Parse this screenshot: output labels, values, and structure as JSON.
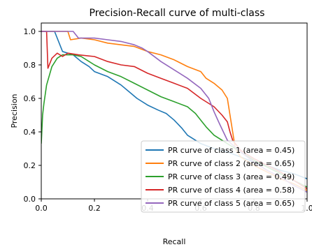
{
  "chart_data": {
    "type": "line",
    "title": "Precision-Recall curve of multi-class",
    "xlabel": "Recall",
    "ylabel": "Precision",
    "xlim": [
      0.0,
      1.0
    ],
    "ylim": [
      0.0,
      1.05
    ],
    "xticks": [
      "0.0",
      "0.2",
      "0.4",
      "0.6",
      "0.8",
      "1.0"
    ],
    "yticks": [
      "0.0",
      "0.2",
      "0.4",
      "0.6",
      "0.8",
      "1.0"
    ],
    "grid": false,
    "legend_position": "lower-right",
    "series": [
      {
        "name": "PR curve of class 1 (area = 0.45)",
        "color": "#1f77b4",
        "points": [
          [
            0.0,
            1.0
          ],
          [
            0.05,
            1.0
          ],
          [
            0.08,
            0.88
          ],
          [
            0.12,
            0.86
          ],
          [
            0.15,
            0.82
          ],
          [
            0.18,
            0.79
          ],
          [
            0.2,
            0.76
          ],
          [
            0.25,
            0.73
          ],
          [
            0.3,
            0.68
          ],
          [
            0.33,
            0.64
          ],
          [
            0.36,
            0.6
          ],
          [
            0.4,
            0.56
          ],
          [
            0.44,
            0.53
          ],
          [
            0.47,
            0.51
          ],
          [
            0.5,
            0.47
          ],
          [
            0.53,
            0.42
          ],
          [
            0.55,
            0.38
          ],
          [
            0.57,
            0.36
          ],
          [
            0.6,
            0.33
          ],
          [
            0.65,
            0.3
          ],
          [
            0.7,
            0.28
          ],
          [
            0.75,
            0.25
          ],
          [
            0.8,
            0.22
          ],
          [
            0.85,
            0.2
          ],
          [
            0.9,
            0.17
          ],
          [
            0.95,
            0.15
          ],
          [
            1.0,
            0.12
          ]
        ]
      },
      {
        "name": "PR curve of class 2 (area = 0.65)",
        "color": "#ff7f0e",
        "points": [
          [
            0.0,
            1.0
          ],
          [
            0.1,
            1.0
          ],
          [
            0.11,
            0.95
          ],
          [
            0.15,
            0.96
          ],
          [
            0.2,
            0.95
          ],
          [
            0.25,
            0.93
          ],
          [
            0.3,
            0.92
          ],
          [
            0.35,
            0.91
          ],
          [
            0.4,
            0.88
          ],
          [
            0.45,
            0.86
          ],
          [
            0.5,
            0.83
          ],
          [
            0.55,
            0.79
          ],
          [
            0.6,
            0.76
          ],
          [
            0.62,
            0.72
          ],
          [
            0.65,
            0.69
          ],
          [
            0.68,
            0.65
          ],
          [
            0.7,
            0.6
          ],
          [
            0.71,
            0.5
          ],
          [
            0.72,
            0.4
          ],
          [
            0.73,
            0.3
          ],
          [
            0.75,
            0.25
          ],
          [
            0.8,
            0.2
          ],
          [
            0.85,
            0.16
          ],
          [
            0.9,
            0.12
          ],
          [
            0.95,
            0.09
          ],
          [
            1.0,
            0.05
          ]
        ]
      },
      {
        "name": "PR curve of class 3 (area = 0.49)",
        "color": "#2ca02c",
        "points": [
          [
            0.0,
            0.33
          ],
          [
            0.005,
            0.5
          ],
          [
            0.01,
            0.57
          ],
          [
            0.02,
            0.68
          ],
          [
            0.04,
            0.79
          ],
          [
            0.06,
            0.84
          ],
          [
            0.08,
            0.86
          ],
          [
            0.12,
            0.86
          ],
          [
            0.15,
            0.85
          ],
          [
            0.2,
            0.8
          ],
          [
            0.25,
            0.76
          ],
          [
            0.3,
            0.73
          ],
          [
            0.35,
            0.69
          ],
          [
            0.4,
            0.65
          ],
          [
            0.45,
            0.61
          ],
          [
            0.5,
            0.58
          ],
          [
            0.55,
            0.55
          ],
          [
            0.58,
            0.51
          ],
          [
            0.6,
            0.47
          ],
          [
            0.62,
            0.43
          ],
          [
            0.65,
            0.38
          ],
          [
            0.7,
            0.33
          ],
          [
            0.75,
            0.28
          ],
          [
            0.8,
            0.23
          ],
          [
            0.85,
            0.19
          ],
          [
            0.9,
            0.15
          ],
          [
            0.95,
            0.11
          ],
          [
            1.0,
            0.07
          ]
        ]
      },
      {
        "name": "PR curve of class 4 (area = 0.58)",
        "color": "#d62728",
        "points": [
          [
            0.0,
            1.0
          ],
          [
            0.02,
            1.0
          ],
          [
            0.025,
            0.78
          ],
          [
            0.04,
            0.84
          ],
          [
            0.06,
            0.87
          ],
          [
            0.08,
            0.85
          ],
          [
            0.1,
            0.87
          ],
          [
            0.14,
            0.86
          ],
          [
            0.2,
            0.85
          ],
          [
            0.25,
            0.82
          ],
          [
            0.3,
            0.8
          ],
          [
            0.35,
            0.79
          ],
          [
            0.4,
            0.75
          ],
          [
            0.45,
            0.72
          ],
          [
            0.5,
            0.69
          ],
          [
            0.55,
            0.66
          ],
          [
            0.6,
            0.6
          ],
          [
            0.65,
            0.55
          ],
          [
            0.68,
            0.5
          ],
          [
            0.7,
            0.46
          ],
          [
            0.71,
            0.4
          ],
          [
            0.72,
            0.35
          ],
          [
            0.75,
            0.29
          ],
          [
            0.8,
            0.24
          ],
          [
            0.85,
            0.2
          ],
          [
            0.9,
            0.16
          ],
          [
            0.95,
            0.11
          ],
          [
            1.0,
            0.06
          ]
        ]
      },
      {
        "name": "PR curve of class 5 (area = 0.65)",
        "color": "#9467bd",
        "points": [
          [
            0.0,
            1.0
          ],
          [
            0.12,
            1.0
          ],
          [
            0.14,
            0.96
          ],
          [
            0.2,
            0.96
          ],
          [
            0.25,
            0.95
          ],
          [
            0.3,
            0.94
          ],
          [
            0.35,
            0.92
          ],
          [
            0.38,
            0.9
          ],
          [
            0.4,
            0.88
          ],
          [
            0.45,
            0.82
          ],
          [
            0.5,
            0.77
          ],
          [
            0.55,
            0.72
          ],
          [
            0.6,
            0.66
          ],
          [
            0.63,
            0.6
          ],
          [
            0.65,
            0.52
          ],
          [
            0.67,
            0.45
          ],
          [
            0.7,
            0.35
          ],
          [
            0.75,
            0.28
          ],
          [
            0.8,
            0.22
          ],
          [
            0.85,
            0.17
          ],
          [
            0.9,
            0.13
          ],
          [
            0.95,
            0.08
          ],
          [
            1.0,
            0.04
          ]
        ]
      }
    ]
  }
}
